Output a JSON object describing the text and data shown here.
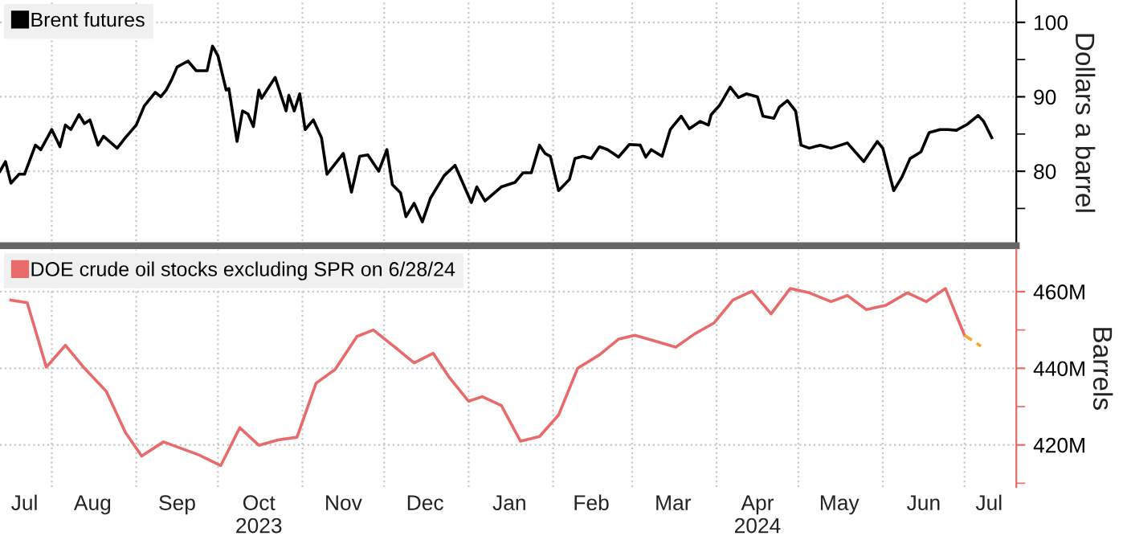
{
  "chart_data": [
    {
      "type": "line",
      "ylabel": "Dollars a barrel",
      "legend": "top left",
      "grid": true,
      "tick_labels": "y",
      "xlim": [
        "2023-07-13",
        "2024-07-20"
      ],
      "ylim": [
        70,
        103
      ],
      "xticks": [
        {
          "value": "2023-08-01",
          "label": null
        },
        {
          "value": "2023-09-01",
          "label": null
        },
        {
          "value": "2023-10-01",
          "label": null
        },
        {
          "value": "2023-11-01",
          "label": null
        },
        {
          "value": "2023-12-01",
          "label": null
        },
        {
          "value": "2024-01-01",
          "label": null
        },
        {
          "value": "2024-02-01",
          "label": null
        },
        {
          "value": "2024-03-01",
          "label": null
        },
        {
          "value": "2024-04-01",
          "label": null
        },
        {
          "value": "2024-05-01",
          "label": null
        },
        {
          "value": "2024-06-01",
          "label": null
        },
        {
          "value": "2024-07-01",
          "label": null
        }
      ],
      "yticks": [
        100,
        90,
        80,
        {
          "value": 95,
          "label": null
        },
        {
          "value": 85,
          "label": null
        },
        {
          "value": 75,
          "label": null
        }
      ],
      "series": [
        {
          "name": "Brent futures",
          "color": "#000000",
          "x": [
            "2023-07-13",
            "2023-07-15",
            "2023-07-17",
            "2023-07-20",
            "2023-07-22",
            "2023-07-26",
            "2023-07-28",
            "2023-08-01",
            "2023-08-04",
            "2023-08-06",
            "2023-08-08",
            "2023-08-11",
            "2023-08-13",
            "2023-08-15",
            "2023-08-18",
            "2023-08-20",
            "2023-08-25",
            "2023-08-28",
            "2023-09-01",
            "2023-09-04",
            "2023-09-08",
            "2023-09-10",
            "2023-09-12",
            "2023-09-14",
            "2023-09-16",
            "2023-09-20",
            "2023-09-23",
            "2023-09-27",
            "2023-09-29",
            "2023-10-01",
            "2023-10-04",
            "2023-10-05",
            "2023-10-08",
            "2023-10-10",
            "2023-10-12",
            "2023-10-14",
            "2023-10-16",
            "2023-10-17",
            "2023-10-22",
            "2023-10-26",
            "2023-10-27",
            "2023-10-29",
            "2023-10-31",
            "2023-11-02",
            "2023-11-05",
            "2023-11-08",
            "2023-11-10",
            "2023-11-16",
            "2023-11-19",
            "2023-11-22",
            "2023-11-25",
            "2023-11-29",
            "2023-12-02",
            "2023-12-04",
            "2023-12-07",
            "2023-12-09",
            "2023-12-12",
            "2023-12-15",
            "2023-12-18",
            "2023-12-23",
            "2023-12-27",
            "2024-01-02",
            "2024-01-04",
            "2024-01-07",
            "2024-01-13",
            "2024-01-18",
            "2024-01-21",
            "2024-01-24",
            "2024-01-27",
            "2024-01-29",
            "2024-01-31",
            "2024-02-03",
            "2024-02-07",
            "2024-02-09",
            "2024-02-12",
            "2024-02-15",
            "2024-02-18",
            "2024-02-21",
            "2024-02-25",
            "2024-02-29",
            "2024-03-04",
            "2024-03-06",
            "2024-03-08",
            "2024-03-12",
            "2024-03-15",
            "2024-03-19",
            "2024-03-22",
            "2024-03-26",
            "2024-03-29",
            "2024-03-30",
            "2024-04-02",
            "2024-04-06",
            "2024-04-09",
            "2024-04-12",
            "2024-04-16",
            "2024-04-18",
            "2024-04-22",
            "2024-04-24",
            "2024-04-27",
            "2024-04-30",
            "2024-05-02",
            "2024-05-05",
            "2024-05-09",
            "2024-05-13",
            "2024-05-19",
            "2024-05-25",
            "2024-05-30",
            "2024-06-01",
            "2024-06-05",
            "2024-06-08",
            "2024-06-11",
            "2024-06-15",
            "2024-06-18",
            "2024-06-22",
            "2024-06-25",
            "2024-06-28",
            "2024-07-02",
            "2024-07-06",
            "2024-07-08",
            "2024-07-11"
          ],
          "values": [
            80.0,
            81.3,
            78.4,
            79.6,
            79.6,
            83.5,
            82.9,
            85.6,
            83.3,
            86.2,
            85.6,
            87.6,
            86.4,
            86.9,
            83.5,
            84.7,
            83.1,
            84.5,
            86.2,
            88.8,
            90.6,
            90.0,
            90.9,
            92.3,
            94.0,
            94.8,
            93.5,
            93.5,
            96.8,
            95.5,
            90.9,
            91.1,
            84.0,
            88.1,
            87.7,
            86.0,
            90.9,
            89.8,
            92.6,
            88.1,
            90.2,
            88.1,
            90.4,
            85.6,
            86.9,
            84.5,
            79.6,
            82.4,
            77.2,
            82.0,
            82.2,
            80.0,
            82.9,
            78.2,
            77.1,
            73.9,
            75.7,
            73.2,
            76.4,
            79.4,
            80.8,
            75.8,
            77.9,
            76.0,
            77.9,
            78.5,
            79.8,
            79.8,
            83.5,
            82.4,
            82.0,
            77.4,
            78.9,
            81.7,
            82.0,
            81.7,
            83.3,
            82.9,
            81.9,
            83.6,
            83.5,
            81.9,
            82.9,
            82.0,
            85.6,
            87.4,
            85.7,
            86.7,
            86.2,
            87.6,
            88.8,
            91.3,
            89.9,
            90.4,
            90.0,
            87.4,
            87.1,
            88.6,
            89.5,
            88.1,
            83.5,
            83.1,
            83.5,
            83.1,
            83.8,
            81.3,
            84.0,
            83.1,
            77.4,
            79.2,
            81.7,
            82.6,
            85.2,
            85.6,
            85.6,
            85.5,
            86.3,
            87.5,
            86.7,
            84.5
          ]
        }
      ]
    },
    {
      "type": "line",
      "ylabel": "Barrels",
      "legend": "top left",
      "grid": true,
      "xlim": [
        "2023-07-13",
        "2024-07-20"
      ],
      "ylim": [
        409,
        471
      ],
      "xticks": [
        {
          "value": "2023-08-01",
          "label": null
        },
        {
          "value": "2023-09-01",
          "label": null
        },
        {
          "value": "2023-10-01",
          "label": null
        },
        {
          "value": "2023-11-01",
          "label": null
        },
        {
          "value": "2023-12-01",
          "label": null
        },
        {
          "value": "2024-01-01",
          "label": null
        },
        {
          "value": "2024-02-01",
          "label": null
        },
        {
          "value": "2024-03-01",
          "label": null
        },
        {
          "value": "2024-04-01",
          "label": null
        },
        {
          "value": "2024-05-01",
          "label": null
        },
        {
          "value": "2024-06-01",
          "label": null
        },
        {
          "value": "2024-07-01",
          "label": null
        },
        {
          "value": "2023-07-22",
          "label": "Jul"
        },
        {
          "value": "2023-08-16",
          "label": "Aug"
        },
        {
          "value": "2023-09-16",
          "label": "Sep"
        },
        {
          "value": "2023-10-16",
          "label": "Oct\n2023"
        },
        {
          "value": "2023-11-16",
          "label": "Nov"
        },
        {
          "value": "2023-12-16",
          "label": "Dec"
        },
        {
          "value": "2024-01-16",
          "label": "Jan"
        },
        {
          "value": "2024-02-15",
          "label": "Feb"
        },
        {
          "value": "2024-03-16",
          "label": "Mar"
        },
        {
          "value": "2024-04-16",
          "label": "Apr\n2024"
        },
        {
          "value": "2024-05-16",
          "label": "May"
        },
        {
          "value": "2024-06-16",
          "label": "Jun"
        },
        {
          "value": "2024-07-10",
          "label": "Jul"
        }
      ],
      "yticks": [
        {
          "value": 460,
          "label": "460M"
        },
        {
          "value": 440,
          "label": "440M"
        },
        {
          "value": 420,
          "label": "420M"
        },
        {
          "value": 450,
          "label": null
        },
        {
          "value": 430,
          "label": null
        },
        {
          "value": 410,
          "label": null
        }
      ],
      "series": [
        {
          "name": "DOE crude oil stocks excluding SPR on 6/28/24",
          "color": "#e96a6a",
          "x": [
            "2023-07-17",
            "2023-07-23",
            "2023-07-30",
            "2023-08-06",
            "2023-08-13",
            "2023-08-21",
            "2023-08-28",
            "2023-09-03",
            "2023-09-11",
            "2023-09-24",
            "2023-10-02",
            "2023-10-09",
            "2023-10-16",
            "2023-10-23",
            "2023-10-30",
            "2023-11-06",
            "2023-11-13",
            "2023-11-21",
            "2023-11-27",
            "2023-12-05",
            "2023-12-12",
            "2023-12-19",
            "2023-12-25",
            "2024-01-01",
            "2024-01-06",
            "2024-01-13",
            "2024-01-20",
            "2024-01-27",
            "2024-02-03",
            "2024-02-10",
            "2024-02-18",
            "2024-02-25",
            "2024-03-02",
            "2024-03-09",
            "2024-03-17",
            "2024-03-24",
            "2024-03-31",
            "2024-04-07",
            "2024-04-14",
            "2024-04-21",
            "2024-04-28",
            "2024-05-05",
            "2024-05-13",
            "2024-05-19",
            "2024-05-26",
            "2024-06-02",
            "2024-06-10",
            "2024-06-17",
            "2024-06-24",
            "2024-07-01"
          ],
          "values": [
            457.8,
            457.1,
            440.3,
            446.0,
            440.0,
            434.0,
            423.3,
            417.1,
            420.8,
            417.4,
            414.6,
            424.5,
            419.9,
            421.3,
            422.0,
            436.1,
            439.7,
            448.3,
            450.0,
            445.5,
            441.4,
            443.9,
            437.5,
            431.4,
            432.6,
            430.3,
            421.0,
            422.2,
            427.8,
            440.0,
            443.5,
            447.6,
            448.6,
            447.2,
            445.5,
            449.0,
            451.8,
            457.8,
            460.1,
            454.2,
            460.8,
            459.7,
            457.4,
            459.0,
            455.3,
            456.4,
            459.7,
            457.4,
            460.8,
            448.6
          ]
        },
        {
          "color": "#f5a623",
          "line_style": "dashed",
          "x": [
            "2024-07-01",
            "2024-07-07"
          ],
          "values": [
            448.6,
            445.8
          ]
        }
      ]
    }
  ]
}
